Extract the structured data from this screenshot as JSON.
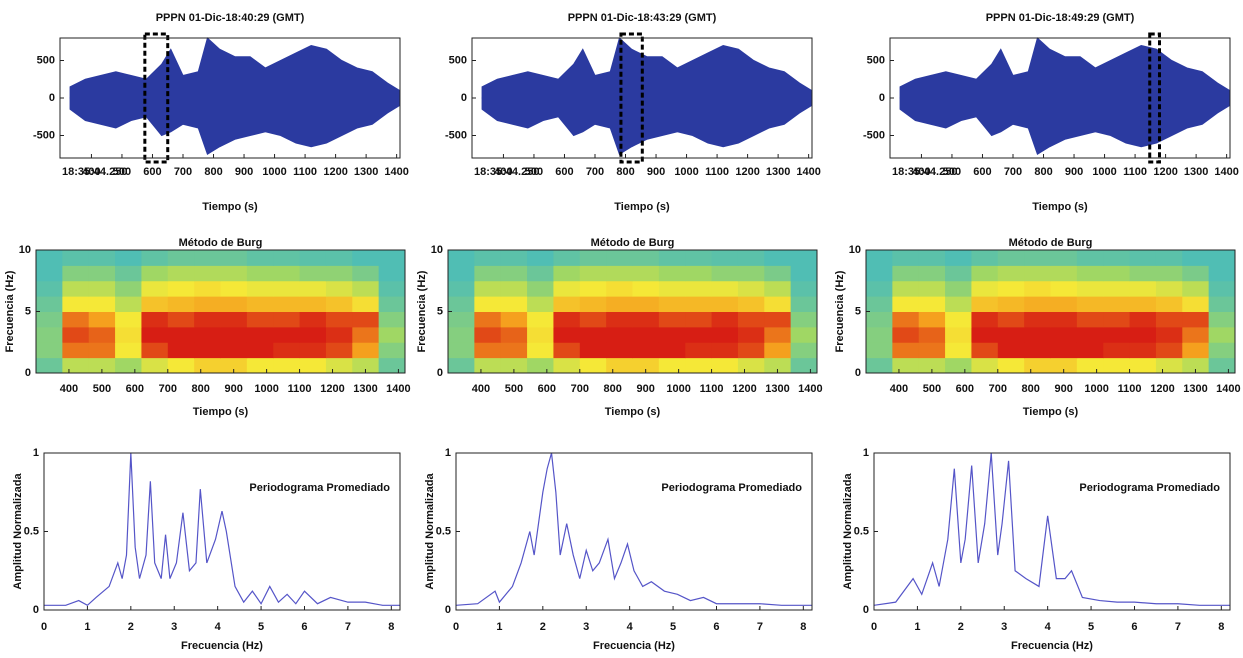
{
  "chart_data": [
    {
      "type": "envelope",
      "title": "PPPN 01-Dic-18:40:29 (GMT)",
      "xlabel": "Tiempo (s)",
      "start_label": "18:35:44.250",
      "color": "#2b3aa0",
      "x": [
        330,
        380,
        430,
        480,
        530,
        580,
        630,
        660,
        700,
        750,
        780,
        820,
        870,
        920,
        970,
        1020,
        1070,
        1120,
        1170,
        1220,
        1270,
        1320,
        1370,
        1410
      ],
      "upper": [
        150,
        250,
        300,
        350,
        300,
        250,
        450,
        650,
        300,
        350,
        800,
        650,
        550,
        550,
        400,
        500,
        600,
        700,
        650,
        500,
        400,
        350,
        200,
        100
      ],
      "lower": [
        -150,
        -300,
        -350,
        -400,
        -300,
        -250,
        -500,
        -450,
        -350,
        -400,
        -750,
        -650,
        -550,
        -500,
        -450,
        -500,
        -600,
        -650,
        -600,
        -500,
        -400,
        -350,
        -200,
        -100
      ],
      "window": [
        575,
        650
      ],
      "xlim": [
        297,
        1411
      ],
      "ylim": [
        -800,
        800
      ],
      "xticks": [
        400,
        500,
        600,
        700,
        800,
        900,
        1000,
        1100,
        1200,
        1300,
        1400
      ],
      "yticks": [
        -500,
        0,
        500
      ]
    },
    {
      "type": "envelope",
      "title": "PPPN 01-Dic-18:43:29 (GMT)",
      "xlabel": "Tiempo (s)",
      "start_label": "18:35:44.250",
      "color": "#2b3aa0",
      "x": [
        330,
        380,
        430,
        480,
        530,
        580,
        630,
        660,
        700,
        750,
        780,
        820,
        870,
        920,
        970,
        1020,
        1070,
        1120,
        1170,
        1220,
        1270,
        1320,
        1370,
        1410
      ],
      "upper": [
        150,
        250,
        300,
        350,
        300,
        250,
        450,
        650,
        300,
        350,
        800,
        650,
        550,
        550,
        400,
        500,
        600,
        700,
        650,
        500,
        400,
        350,
        200,
        100
      ],
      "lower": [
        -150,
        -300,
        -350,
        -400,
        -300,
        -250,
        -500,
        -450,
        -350,
        -400,
        -750,
        -650,
        -550,
        -500,
        -450,
        -500,
        -600,
        -650,
        -600,
        -500,
        -400,
        -350,
        -200,
        -100
      ],
      "window": [
        785,
        855
      ],
      "xlim": [
        297,
        1411
      ],
      "ylim": [
        -800,
        800
      ],
      "xticks": [
        400,
        500,
        600,
        700,
        800,
        900,
        1000,
        1100,
        1200,
        1300,
        1400
      ],
      "yticks": [
        -500,
        0,
        500
      ]
    },
    {
      "type": "envelope",
      "title": "PPPN 01-Dic-18:49:29 (GMT)",
      "xlabel": "Tiempo (s)",
      "start_label": "18:35:44.250",
      "color": "#2b3aa0",
      "x": [
        330,
        380,
        430,
        480,
        530,
        580,
        630,
        660,
        700,
        750,
        780,
        820,
        870,
        920,
        970,
        1020,
        1070,
        1120,
        1170,
        1220,
        1270,
        1320,
        1370,
        1410
      ],
      "upper": [
        150,
        250,
        300,
        350,
        300,
        250,
        450,
        650,
        300,
        350,
        800,
        650,
        550,
        550,
        400,
        500,
        600,
        700,
        650,
        500,
        400,
        350,
        200,
        100
      ],
      "lower": [
        -150,
        -300,
        -350,
        -400,
        -300,
        -250,
        -500,
        -450,
        -350,
        -400,
        -750,
        -650,
        -550,
        -500,
        -450,
        -500,
        -600,
        -650,
        -600,
        -500,
        -400,
        -350,
        -200,
        -100
      ],
      "window": [
        1148,
        1180
      ],
      "xlim": [
        297,
        1411
      ],
      "ylim": [
        -800,
        800
      ],
      "xticks": [
        400,
        500,
        600,
        700,
        800,
        900,
        1000,
        1100,
        1200,
        1300,
        1400
      ],
      "yticks": [
        -500,
        0,
        500
      ]
    },
    {
      "type": "heatmap",
      "title": "Método de Burg",
      "xlabel": "Tiempo (s)",
      "ylabel": "Frecuencia (Hz)",
      "x_bins": [
        300,
        380,
        460,
        540,
        620,
        700,
        780,
        860,
        940,
        1020,
        1100,
        1180,
        1260,
        1340,
        1420
      ],
      "y_bins": [
        0,
        1.25,
        2.5,
        3.75,
        5,
        6.25,
        7.5,
        8.75,
        10
      ],
      "values": [
        [
          0.35,
          0.5,
          0.5,
          0.45,
          0.55,
          0.6,
          0.65,
          0.65,
          0.6,
          0.6,
          0.6,
          0.55,
          0.5,
          0.35
        ],
        [
          0.4,
          0.8,
          0.8,
          0.6,
          0.85,
          0.9,
          0.92,
          0.92,
          0.9,
          0.88,
          0.88,
          0.85,
          0.75,
          0.4
        ],
        [
          0.4,
          0.85,
          0.82,
          0.62,
          0.9,
          0.92,
          0.95,
          0.95,
          0.92,
          0.9,
          0.9,
          0.88,
          0.8,
          0.45
        ],
        [
          0.38,
          0.8,
          0.75,
          0.6,
          0.88,
          0.85,
          0.88,
          0.88,
          0.85,
          0.85,
          0.88,
          0.85,
          0.85,
          0.4
        ],
        [
          0.35,
          0.6,
          0.6,
          0.5,
          0.68,
          0.7,
          0.72,
          0.72,
          0.7,
          0.7,
          0.7,
          0.68,
          0.62,
          0.35
        ],
        [
          0.32,
          0.5,
          0.5,
          0.42,
          0.58,
          0.6,
          0.62,
          0.6,
          0.58,
          0.58,
          0.58,
          0.55,
          0.5,
          0.32
        ],
        [
          0.3,
          0.4,
          0.4,
          0.35,
          0.45,
          0.48,
          0.48,
          0.48,
          0.45,
          0.45,
          0.42,
          0.42,
          0.38,
          0.3
        ],
        [
          0.3,
          0.32,
          0.32,
          0.3,
          0.33,
          0.35,
          0.35,
          0.35,
          0.33,
          0.33,
          0.32,
          0.32,
          0.3,
          0.3
        ]
      ],
      "xlim": [
        300,
        1420
      ],
      "ylim": [
        0,
        10
      ],
      "xticks": [
        400,
        500,
        600,
        700,
        800,
        900,
        1000,
        1100,
        1200,
        1300,
        1400
      ],
      "yticks": [
        0,
        5,
        10
      ]
    },
    {
      "type": "heatmap",
      "title": "Método de Burg",
      "xlabel": "Tiempo (s)",
      "ylabel": "Frecuencia (Hz)",
      "x_bins": [
        300,
        380,
        460,
        540,
        620,
        700,
        780,
        860,
        940,
        1020,
        1100,
        1180,
        1260,
        1340,
        1420
      ],
      "y_bins": [
        0,
        1.25,
        2.5,
        3.75,
        5,
        6.25,
        7.5,
        8.75,
        10
      ],
      "values": [
        [
          0.35,
          0.5,
          0.5,
          0.45,
          0.55,
          0.6,
          0.65,
          0.65,
          0.6,
          0.6,
          0.6,
          0.55,
          0.5,
          0.35
        ],
        [
          0.4,
          0.8,
          0.8,
          0.6,
          0.85,
          0.9,
          0.92,
          0.92,
          0.9,
          0.88,
          0.88,
          0.85,
          0.75,
          0.4
        ],
        [
          0.4,
          0.85,
          0.82,
          0.62,
          0.9,
          0.92,
          0.95,
          0.95,
          0.92,
          0.9,
          0.9,
          0.88,
          0.8,
          0.45
        ],
        [
          0.38,
          0.8,
          0.75,
          0.6,
          0.88,
          0.85,
          0.88,
          0.88,
          0.85,
          0.85,
          0.88,
          0.85,
          0.85,
          0.4
        ],
        [
          0.35,
          0.6,
          0.6,
          0.5,
          0.68,
          0.7,
          0.72,
          0.72,
          0.7,
          0.7,
          0.7,
          0.68,
          0.62,
          0.35
        ],
        [
          0.32,
          0.5,
          0.5,
          0.42,
          0.58,
          0.6,
          0.62,
          0.6,
          0.58,
          0.58,
          0.58,
          0.55,
          0.5,
          0.32
        ],
        [
          0.3,
          0.4,
          0.4,
          0.35,
          0.45,
          0.48,
          0.48,
          0.48,
          0.45,
          0.45,
          0.42,
          0.42,
          0.38,
          0.3
        ],
        [
          0.3,
          0.32,
          0.32,
          0.3,
          0.33,
          0.35,
          0.35,
          0.35,
          0.33,
          0.33,
          0.32,
          0.32,
          0.3,
          0.3
        ]
      ],
      "xlim": [
        300,
        1420
      ],
      "ylim": [
        0,
        10
      ],
      "xticks": [
        400,
        500,
        600,
        700,
        800,
        900,
        1000,
        1100,
        1200,
        1300,
        1400
      ],
      "yticks": [
        0,
        5,
        10
      ]
    },
    {
      "type": "heatmap",
      "title": "Método de Burg",
      "xlabel": "Tiempo (s)",
      "ylabel": "Frecuencia (Hz)",
      "x_bins": [
        300,
        380,
        460,
        540,
        620,
        700,
        780,
        860,
        940,
        1020,
        1100,
        1180,
        1260,
        1340,
        1420
      ],
      "y_bins": [
        0,
        1.25,
        2.5,
        3.75,
        5,
        6.25,
        7.5,
        8.75,
        10
      ],
      "values": [
        [
          0.35,
          0.5,
          0.5,
          0.45,
          0.55,
          0.6,
          0.65,
          0.65,
          0.6,
          0.6,
          0.6,
          0.55,
          0.5,
          0.35
        ],
        [
          0.4,
          0.8,
          0.8,
          0.6,
          0.85,
          0.9,
          0.92,
          0.92,
          0.9,
          0.88,
          0.88,
          0.85,
          0.75,
          0.4
        ],
        [
          0.4,
          0.85,
          0.82,
          0.62,
          0.9,
          0.92,
          0.95,
          0.95,
          0.92,
          0.9,
          0.9,
          0.88,
          0.8,
          0.45
        ],
        [
          0.38,
          0.8,
          0.75,
          0.6,
          0.88,
          0.85,
          0.88,
          0.88,
          0.85,
          0.85,
          0.88,
          0.85,
          0.85,
          0.4
        ],
        [
          0.35,
          0.6,
          0.6,
          0.5,
          0.68,
          0.7,
          0.72,
          0.72,
          0.7,
          0.7,
          0.7,
          0.68,
          0.62,
          0.35
        ],
        [
          0.32,
          0.5,
          0.5,
          0.42,
          0.58,
          0.6,
          0.62,
          0.6,
          0.58,
          0.58,
          0.58,
          0.55,
          0.5,
          0.32
        ],
        [
          0.3,
          0.4,
          0.4,
          0.35,
          0.45,
          0.48,
          0.48,
          0.48,
          0.45,
          0.45,
          0.42,
          0.42,
          0.38,
          0.3
        ],
        [
          0.3,
          0.32,
          0.32,
          0.3,
          0.33,
          0.35,
          0.35,
          0.35,
          0.33,
          0.33,
          0.32,
          0.32,
          0.3,
          0.3
        ]
      ],
      "xlim": [
        300,
        1420
      ],
      "ylim": [
        0,
        10
      ],
      "xticks": [
        400,
        500,
        600,
        700,
        800,
        900,
        1000,
        1100,
        1200,
        1300,
        1400
      ],
      "yticks": [
        0,
        5,
        10
      ]
    },
    {
      "type": "line",
      "annotation": "Periodograma Promediado",
      "xlabel": "Frecuencia (Hz)",
      "ylabel": "Amplitud Normalizada",
      "color": "#5555c8",
      "x": [
        0,
        0.5,
        0.8,
        1.0,
        1.2,
        1.5,
        1.7,
        1.8,
        1.9,
        2.0,
        2.1,
        2.2,
        2.35,
        2.45,
        2.55,
        2.7,
        2.8,
        2.9,
        3.05,
        3.2,
        3.35,
        3.5,
        3.6,
        3.75,
        3.95,
        4.1,
        4.2,
        4.4,
        4.6,
        4.8,
        5.0,
        5.2,
        5.4,
        5.6,
        5.8,
        6.0,
        6.3,
        6.6,
        7.0,
        7.4,
        7.8,
        8.2
      ],
      "values": [
        0.03,
        0.03,
        0.06,
        0.03,
        0.08,
        0.15,
        0.3,
        0.2,
        0.35,
        1.0,
        0.4,
        0.2,
        0.35,
        0.82,
        0.3,
        0.2,
        0.48,
        0.2,
        0.3,
        0.62,
        0.25,
        0.3,
        0.77,
        0.3,
        0.45,
        0.63,
        0.5,
        0.15,
        0.05,
        0.12,
        0.04,
        0.15,
        0.05,
        0.1,
        0.04,
        0.12,
        0.04,
        0.08,
        0.05,
        0.05,
        0.03,
        0.03
      ],
      "xlim": [
        0,
        8.2
      ],
      "ylim": [
        0,
        1
      ],
      "xticks": [
        0,
        1,
        2,
        3,
        4,
        5,
        6,
        7,
        8
      ],
      "yticks": [
        0,
        0.5,
        1
      ]
    },
    {
      "type": "line",
      "annotation": "Periodograma Promediado",
      "xlabel": "Frecuencia (Hz)",
      "ylabel": "Amplitud Normalizada",
      "color": "#5555c8",
      "x": [
        0,
        0.5,
        0.9,
        1.0,
        1.3,
        1.5,
        1.7,
        1.8,
        1.9,
        2.0,
        2.1,
        2.2,
        2.3,
        2.4,
        2.55,
        2.7,
        2.85,
        3.0,
        3.15,
        3.3,
        3.5,
        3.65,
        3.8,
        3.95,
        4.1,
        4.3,
        4.5,
        4.8,
        5.1,
        5.4,
        5.7,
        6.0,
        6.5,
        7.0,
        7.5,
        8.2
      ],
      "values": [
        0.03,
        0.04,
        0.12,
        0.05,
        0.15,
        0.3,
        0.5,
        0.35,
        0.55,
        0.75,
        0.9,
        1.0,
        0.75,
        0.35,
        0.55,
        0.35,
        0.2,
        0.38,
        0.25,
        0.3,
        0.45,
        0.2,
        0.3,
        0.42,
        0.25,
        0.15,
        0.18,
        0.12,
        0.1,
        0.06,
        0.08,
        0.04,
        0.04,
        0.04,
        0.03,
        0.03
      ],
      "xlim": [
        0,
        8.2
      ],
      "ylim": [
        0,
        1
      ],
      "xticks": [
        0,
        1,
        2,
        3,
        4,
        5,
        6,
        7,
        8
      ],
      "yticks": [
        0,
        0.5,
        1
      ]
    },
    {
      "type": "line",
      "annotation": "Periodograma Promediado",
      "xlabel": "Frecuencia (Hz)",
      "ylabel": "Amplitud Normalizada",
      "color": "#5555c8",
      "x": [
        0,
        0.5,
        0.9,
        1.1,
        1.35,
        1.5,
        1.7,
        1.85,
        2.0,
        2.1,
        2.25,
        2.4,
        2.55,
        2.7,
        2.85,
        2.95,
        3.1,
        3.25,
        3.5,
        3.8,
        4.0,
        4.2,
        4.4,
        4.55,
        4.8,
        5.2,
        5.6,
        6.0,
        6.5,
        7.0,
        7.5,
        8.2
      ],
      "values": [
        0.03,
        0.05,
        0.2,
        0.1,
        0.3,
        0.15,
        0.45,
        0.9,
        0.3,
        0.45,
        0.92,
        0.3,
        0.55,
        1.0,
        0.35,
        0.55,
        0.95,
        0.25,
        0.2,
        0.15,
        0.6,
        0.2,
        0.2,
        0.25,
        0.08,
        0.06,
        0.05,
        0.05,
        0.04,
        0.04,
        0.03,
        0.03
      ],
      "xlim": [
        0,
        8.2
      ],
      "ylim": [
        0,
        1
      ],
      "xticks": [
        0,
        1,
        2,
        3,
        4,
        5,
        6,
        7,
        8
      ],
      "yticks": [
        0,
        0.5,
        1
      ]
    }
  ]
}
